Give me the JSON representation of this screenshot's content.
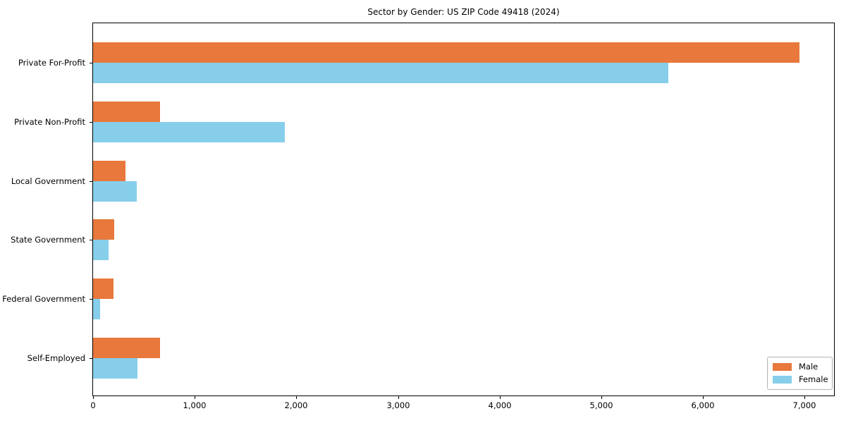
{
  "chart_data": {
    "type": "bar",
    "orientation": "horizontal",
    "title": "Sector by Gender: US ZIP Code 49418 (2024)",
    "categories": [
      "Private For-Profit",
      "Private Non-Profit",
      "Local Government",
      "State Government",
      "Federal Government",
      "Self-Employed"
    ],
    "series": [
      {
        "name": "Male",
        "color": "#e8783c",
        "values": [
          6950,
          660,
          320,
          210,
          200,
          660
        ]
      },
      {
        "name": "Female",
        "color": "#87ceeb",
        "values": [
          5660,
          1890,
          430,
          150,
          70,
          440
        ]
      }
    ],
    "xlabel": "",
    "ylabel": "",
    "xlim": [
      0,
      7290
    ],
    "x_ticks": [
      {
        "value": 0,
        "label": "0"
      },
      {
        "value": 1000,
        "label": "1,000"
      },
      {
        "value": 2000,
        "label": "2,000"
      },
      {
        "value": 3000,
        "label": "3,000"
      },
      {
        "value": 4000,
        "label": "4,000"
      },
      {
        "value": 5000,
        "label": "5,000"
      },
      {
        "value": 6000,
        "label": "6,000"
      },
      {
        "value": 7000,
        "label": "7,000"
      }
    ],
    "grid": false,
    "legend_position": "lower right"
  }
}
